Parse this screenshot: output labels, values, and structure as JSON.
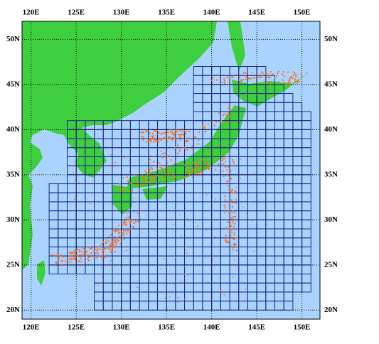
{
  "map": {
    "xlim": [
      119,
      152
    ],
    "ylim": [
      19,
      52
    ],
    "xticks": [
      {
        "value": 120,
        "label": "120E"
      },
      {
        "value": 125,
        "label": "125E"
      },
      {
        "value": 130,
        "label": "130E"
      },
      {
        "value": 135,
        "label": "135E"
      },
      {
        "value": 140,
        "label": "140E"
      },
      {
        "value": 145,
        "label": "145E"
      },
      {
        "value": 150,
        "label": "150E"
      }
    ],
    "yticks": [
      {
        "value": 20,
        "label": "20N"
      },
      {
        "value": 25,
        "label": "25N"
      },
      {
        "value": 30,
        "label": "30N"
      },
      {
        "value": 35,
        "label": "35N"
      },
      {
        "value": 40,
        "label": "40N"
      },
      {
        "value": 45,
        "label": "45N"
      },
      {
        "value": 50,
        "label": "50N"
      }
    ]
  }
}
